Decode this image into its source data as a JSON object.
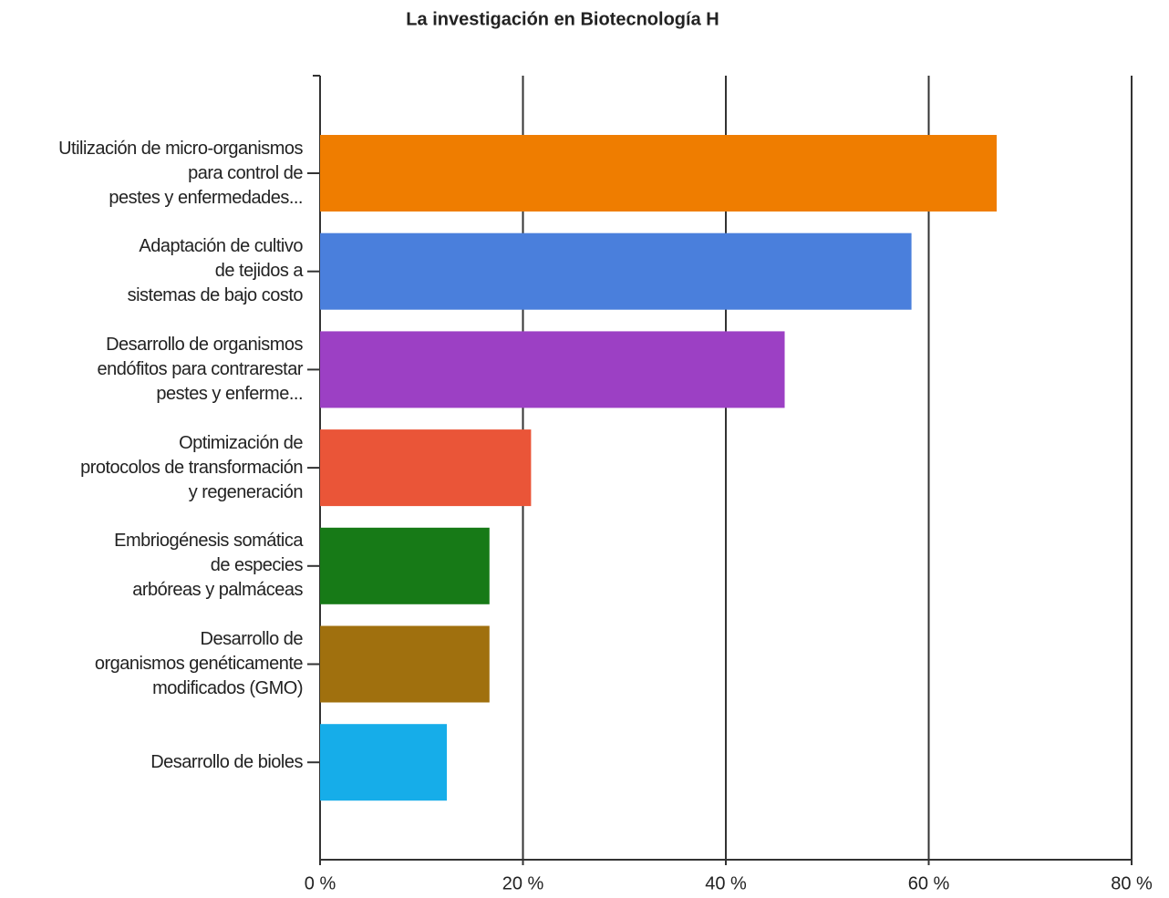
{
  "chart_data": {
    "type": "barh",
    "title": "La investigación en Biotecnología  H",
    "categories": [
      "Utilización de micro-organismos\npara control de\npestes y enfermedades...",
      "Adaptación de cultivo\nde tejidos a\nsistemas de bajo costo",
      "Desarrollo de organismos\nendófitos para contrarestar\npestes y enferme...",
      "Optimización de\nprotocolos de transformación\ny regeneración",
      "Embriogénesis somática\nde especies\narbóreas y palmáceas",
      "Desarrollo de\norganismos genéticamente\nmodificados (GMO)",
      "Desarrollo de bioles"
    ],
    "values": [
      66.7,
      58.3,
      45.8,
      20.8,
      16.7,
      16.7,
      12.5
    ],
    "colors": [
      "#ef7d00",
      "#4a7fdc",
      "#9c40c4",
      "#ea5538",
      "#177a17",
      "#a0700e",
      "#16ade9"
    ],
    "xlim": [
      0,
      80
    ],
    "xticks": [
      {
        "value": 0,
        "label": "0 %"
      },
      {
        "value": 20,
        "label": "20 %"
      },
      {
        "value": 40,
        "label": "40 %"
      },
      {
        "value": 60,
        "label": "60 %"
      },
      {
        "value": 80,
        "label": "80 %"
      }
    ],
    "grid": true
  }
}
